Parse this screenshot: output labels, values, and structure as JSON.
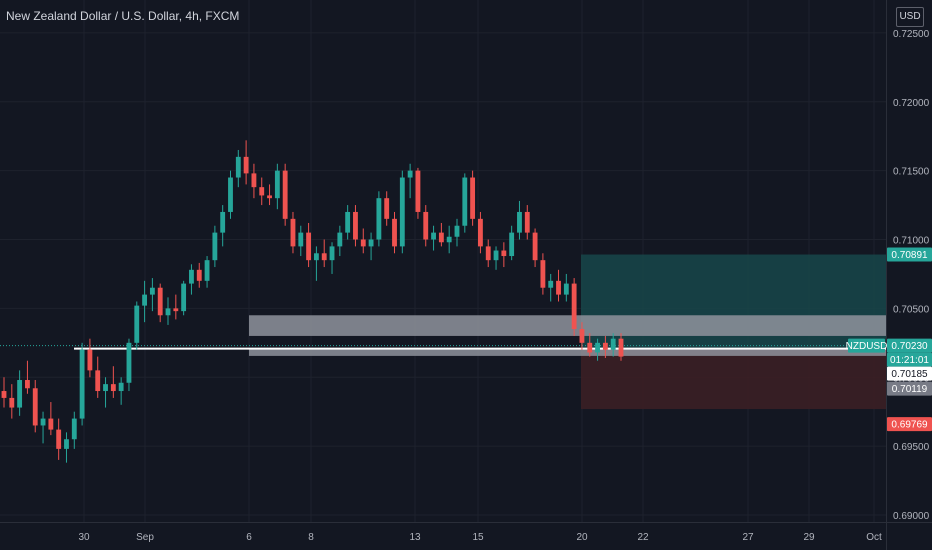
{
  "header": {
    "title": "New Zealand Dollar / U.S. Dollar, 4h, FXCM",
    "currency": "USD"
  },
  "colors": {
    "background": "#131722",
    "up": "#26a69a",
    "down": "#ef5350",
    "grid": "#1e222d",
    "target_zone": "#17464a",
    "stop_zone": "#3b1f25",
    "zone_band": "#8f939c"
  },
  "chart_data": {
    "type": "candlestick",
    "symbol": "NZDUSD",
    "timeframe": "4h",
    "ylim": [
      0.69,
      0.7255
    ],
    "y_ticks": [
      "0.69000",
      "0.69500",
      "0.70000",
      "0.70500",
      "0.71000",
      "0.71500",
      "0.72000",
      "0.72500"
    ],
    "x_ticks": [
      "30",
      "Sep",
      "6",
      "8",
      "13",
      "15",
      "20",
      "22",
      "27",
      "29",
      "Oct"
    ],
    "candles": [
      [
        0.699,
        0.7,
        0.6978,
        0.6985
      ],
      [
        0.6985,
        0.6995,
        0.697,
        0.6978
      ],
      [
        0.6978,
        0.7005,
        0.6972,
        0.6998
      ],
      [
        0.6998,
        0.7012,
        0.6988,
        0.6992
      ],
      [
        0.6992,
        0.6998,
        0.696,
        0.6965
      ],
      [
        0.6965,
        0.6975,
        0.6952,
        0.697
      ],
      [
        0.697,
        0.6982,
        0.6958,
        0.6962
      ],
      [
        0.6962,
        0.697,
        0.694,
        0.6948
      ],
      [
        0.6948,
        0.696,
        0.6938,
        0.6955
      ],
      [
        0.6955,
        0.6975,
        0.6948,
        0.697
      ],
      [
        0.697,
        0.7025,
        0.6965,
        0.702
      ],
      [
        0.702,
        0.7028,
        0.7,
        0.7005
      ],
      [
        0.7005,
        0.7015,
        0.6985,
        0.699
      ],
      [
        0.699,
        0.7,
        0.6978,
        0.6995
      ],
      [
        0.6995,
        0.7008,
        0.6985,
        0.699
      ],
      [
        0.699,
        0.7,
        0.698,
        0.6996
      ],
      [
        0.6996,
        0.7028,
        0.699,
        0.7025
      ],
      [
        0.7025,
        0.7055,
        0.702,
        0.7052
      ],
      [
        0.7052,
        0.707,
        0.704,
        0.706
      ],
      [
        0.706,
        0.7072,
        0.7048,
        0.7065
      ],
      [
        0.7065,
        0.7068,
        0.704,
        0.7045
      ],
      [
        0.7045,
        0.7058,
        0.7038,
        0.705
      ],
      [
        0.705,
        0.706,
        0.7042,
        0.7048
      ],
      [
        0.7048,
        0.707,
        0.7045,
        0.7068
      ],
      [
        0.7068,
        0.7082,
        0.706,
        0.7078
      ],
      [
        0.7078,
        0.7083,
        0.7065,
        0.707
      ],
      [
        0.707,
        0.7088,
        0.7065,
        0.7085
      ],
      [
        0.7085,
        0.711,
        0.708,
        0.7105
      ],
      [
        0.7105,
        0.7125,
        0.7095,
        0.712
      ],
      [
        0.712,
        0.715,
        0.7115,
        0.7145
      ],
      [
        0.7145,
        0.7165,
        0.7138,
        0.716
      ],
      [
        0.716,
        0.7172,
        0.714,
        0.7148
      ],
      [
        0.7148,
        0.7155,
        0.713,
        0.7138
      ],
      [
        0.7138,
        0.7145,
        0.7125,
        0.7132
      ],
      [
        0.7132,
        0.714,
        0.7125,
        0.713
      ],
      [
        0.713,
        0.7155,
        0.7122,
        0.715
      ],
      [
        0.715,
        0.7155,
        0.711,
        0.7115
      ],
      [
        0.7115,
        0.712,
        0.709,
        0.7095
      ],
      [
        0.7095,
        0.711,
        0.7088,
        0.7105
      ],
      [
        0.7105,
        0.7112,
        0.708,
        0.7085
      ],
      [
        0.7085,
        0.7095,
        0.707,
        0.709
      ],
      [
        0.709,
        0.71,
        0.708,
        0.7085
      ],
      [
        0.7085,
        0.7098,
        0.7075,
        0.7095
      ],
      [
        0.7095,
        0.711,
        0.7088,
        0.7105
      ],
      [
        0.7105,
        0.7125,
        0.71,
        0.712
      ],
      [
        0.712,
        0.7125,
        0.7095,
        0.71
      ],
      [
        0.71,
        0.7108,
        0.709,
        0.7095
      ],
      [
        0.7095,
        0.7105,
        0.7085,
        0.71
      ],
      [
        0.71,
        0.7135,
        0.7095,
        0.713
      ],
      [
        0.713,
        0.7135,
        0.711,
        0.7115
      ],
      [
        0.7115,
        0.712,
        0.709,
        0.7095
      ],
      [
        0.7095,
        0.715,
        0.709,
        0.7145
      ],
      [
        0.7145,
        0.7155,
        0.713,
        0.715
      ],
      [
        0.715,
        0.7152,
        0.7115,
        0.712
      ],
      [
        0.712,
        0.7125,
        0.7095,
        0.71
      ],
      [
        0.71,
        0.711,
        0.7092,
        0.7105
      ],
      [
        0.7105,
        0.7112,
        0.7095,
        0.7098
      ],
      [
        0.7098,
        0.711,
        0.709,
        0.7102
      ],
      [
        0.7102,
        0.7115,
        0.7095,
        0.711
      ],
      [
        0.711,
        0.7148,
        0.7105,
        0.7145
      ],
      [
        0.7145,
        0.715,
        0.711,
        0.7115
      ],
      [
        0.7115,
        0.712,
        0.709,
        0.7095
      ],
      [
        0.7095,
        0.71,
        0.708,
        0.7085
      ],
      [
        0.7085,
        0.7095,
        0.7078,
        0.7092
      ],
      [
        0.7092,
        0.7098,
        0.708,
        0.7088
      ],
      [
        0.7088,
        0.711,
        0.7085,
        0.7105
      ],
      [
        0.7105,
        0.7128,
        0.71,
        0.712
      ],
      [
        0.712,
        0.7125,
        0.71,
        0.7105
      ],
      [
        0.7105,
        0.7108,
        0.708,
        0.7085
      ],
      [
        0.7085,
        0.709,
        0.706,
        0.7065
      ],
      [
        0.7065,
        0.7075,
        0.7055,
        0.707
      ],
      [
        0.707,
        0.7078,
        0.7055,
        0.706
      ],
      [
        0.706,
        0.7075,
        0.7055,
        0.7068
      ],
      [
        0.7068,
        0.7072,
        0.703,
        0.7035
      ],
      [
        0.7035,
        0.704,
        0.702,
        0.7025
      ],
      [
        0.7025,
        0.7032,
        0.7015,
        0.7018
      ],
      [
        0.7018,
        0.7028,
        0.7012,
        0.7025
      ],
      [
        0.7025,
        0.703,
        0.7014,
        0.702
      ],
      [
        0.702,
        0.7032,
        0.7015,
        0.7028
      ],
      [
        0.7028,
        0.7032,
        0.7012,
        0.7015
      ]
    ],
    "zones": [
      {
        "from": 0.703,
        "to": 0.7045
      },
      {
        "from": 0.70155,
        "to": 0.7021
      }
    ],
    "reference_line": 0.7023,
    "position": {
      "entry": 0.702,
      "target": 0.70891,
      "stop": 0.69769
    },
    "price_labels": [
      {
        "text": "0.70891",
        "value": 0.70891,
        "bg": "#26a69a",
        "fg": "#ffffff"
      },
      {
        "text": "NZDUSD",
        "value": 0.7023,
        "bg": "#26a69a",
        "fg": "#ffffff"
      },
      {
        "text": "0.70230",
        "value": 0.7023,
        "bg": "#26a69a",
        "fg": "#ffffff"
      },
      {
        "text": "01:21:01",
        "value": 0.7023,
        "bg": "#26a69a",
        "fg": "#ffffff"
      },
      {
        "text": "0.70185",
        "value": 0.70185,
        "bg": "#ffffff",
        "fg": "#131722"
      },
      {
        "text": "0.70119",
        "value": 0.70119,
        "bg": "#787b86",
        "fg": "#ffffff"
      },
      {
        "text": "0.69769",
        "value": 0.69769,
        "bg": "#ef5350",
        "fg": "#ffffff"
      }
    ]
  }
}
